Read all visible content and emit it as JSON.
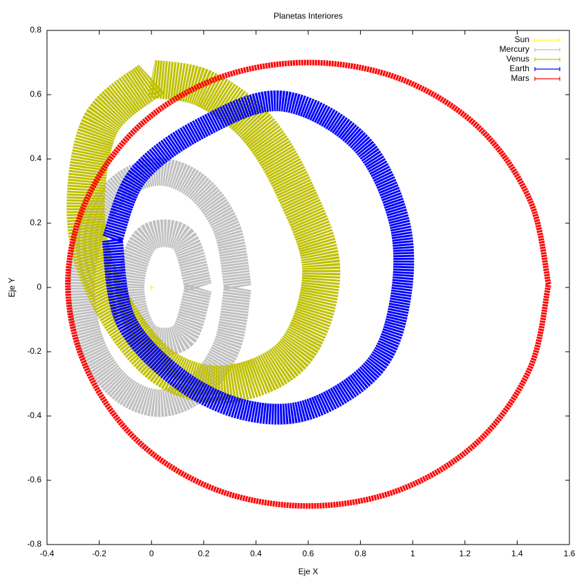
{
  "chart_data": {
    "type": "line",
    "title": "Planetas Interiores",
    "x_label": "Eje X",
    "y_label": "Eje Y",
    "xlim": [
      -0.4,
      1.6
    ],
    "ylim": [
      -0.8,
      0.8
    ],
    "xticks": [
      -0.4,
      -0.2,
      0,
      0.2,
      0.4,
      0.6,
      0.8,
      1,
      1.2,
      1.4,
      1.6
    ],
    "yticks": [
      -0.8,
      -0.6,
      -0.4,
      -0.2,
      0,
      0.2,
      0.4,
      0.6,
      0.8
    ],
    "grid": false,
    "legend": "top-right",
    "series": [
      {
        "name": "Sun",
        "color": "#ffff00",
        "x": [
          0
        ],
        "y": [
          0
        ]
      },
      {
        "name": "Mercury",
        "color": "#c0c0c0",
        "x": [
          0.33,
          0.29,
          0.18,
          0.03,
          -0.12,
          -0.23,
          -0.27,
          -0.23,
          -0.12,
          0.03,
          0.18,
          0.29,
          0.33,
          null,
          0.18,
          0.12,
          -0.02,
          -0.08,
          -0.02,
          0.12,
          0.18
        ],
        "y": [
          0,
          0.18,
          0.31,
          0.36,
          0.31,
          0.18,
          0,
          -0.18,
          -0.31,
          -0.36,
          -0.31,
          -0.18,
          0,
          null,
          0,
          0.15,
          0.15,
          0,
          -0.15,
          -0.15,
          0
        ]
      },
      {
        "name": "Venus",
        "color": "#c0c000",
        "x": [
          0.0,
          -0.2,
          -0.25,
          -0.15,
          0.05,
          0.3,
          0.55,
          0.65,
          0.55,
          0.4,
          0.2,
          0.0
        ],
        "y": [
          0.65,
          0.5,
          0.2,
          -0.05,
          -0.25,
          -0.3,
          -0.2,
          0.05,
          0.3,
          0.5,
          0.62,
          0.65
        ]
      },
      {
        "name": "Earth",
        "color": "#0000ff",
        "x": [
          -0.15,
          -0.05,
          0.2,
          0.5,
          0.8,
          0.95,
          0.95,
          0.85,
          0.6,
          0.35,
          0.1,
          -0.1,
          -0.15
        ],
        "y": [
          0.15,
          0.35,
          0.5,
          0.58,
          0.45,
          0.2,
          -0.05,
          -0.25,
          -0.38,
          -0.38,
          -0.28,
          -0.1,
          0.15
        ]
      },
      {
        "name": "Mars",
        "color": "#ff0000",
        "x": [
          1.52,
          1.45,
          1.25,
          0.95,
          0.6,
          0.25,
          -0.05,
          -0.25,
          -0.32,
          -0.25,
          -0.05,
          0.25,
          0.6,
          0.95,
          1.25,
          1.45,
          1.52
        ],
        "y": [
          0.01,
          0.27,
          0.5,
          0.65,
          0.7,
          0.65,
          0.5,
          0.27,
          0.01,
          -0.25,
          -0.48,
          -0.63,
          -0.68,
          -0.63,
          -0.48,
          -0.25,
          0.01
        ]
      }
    ]
  }
}
